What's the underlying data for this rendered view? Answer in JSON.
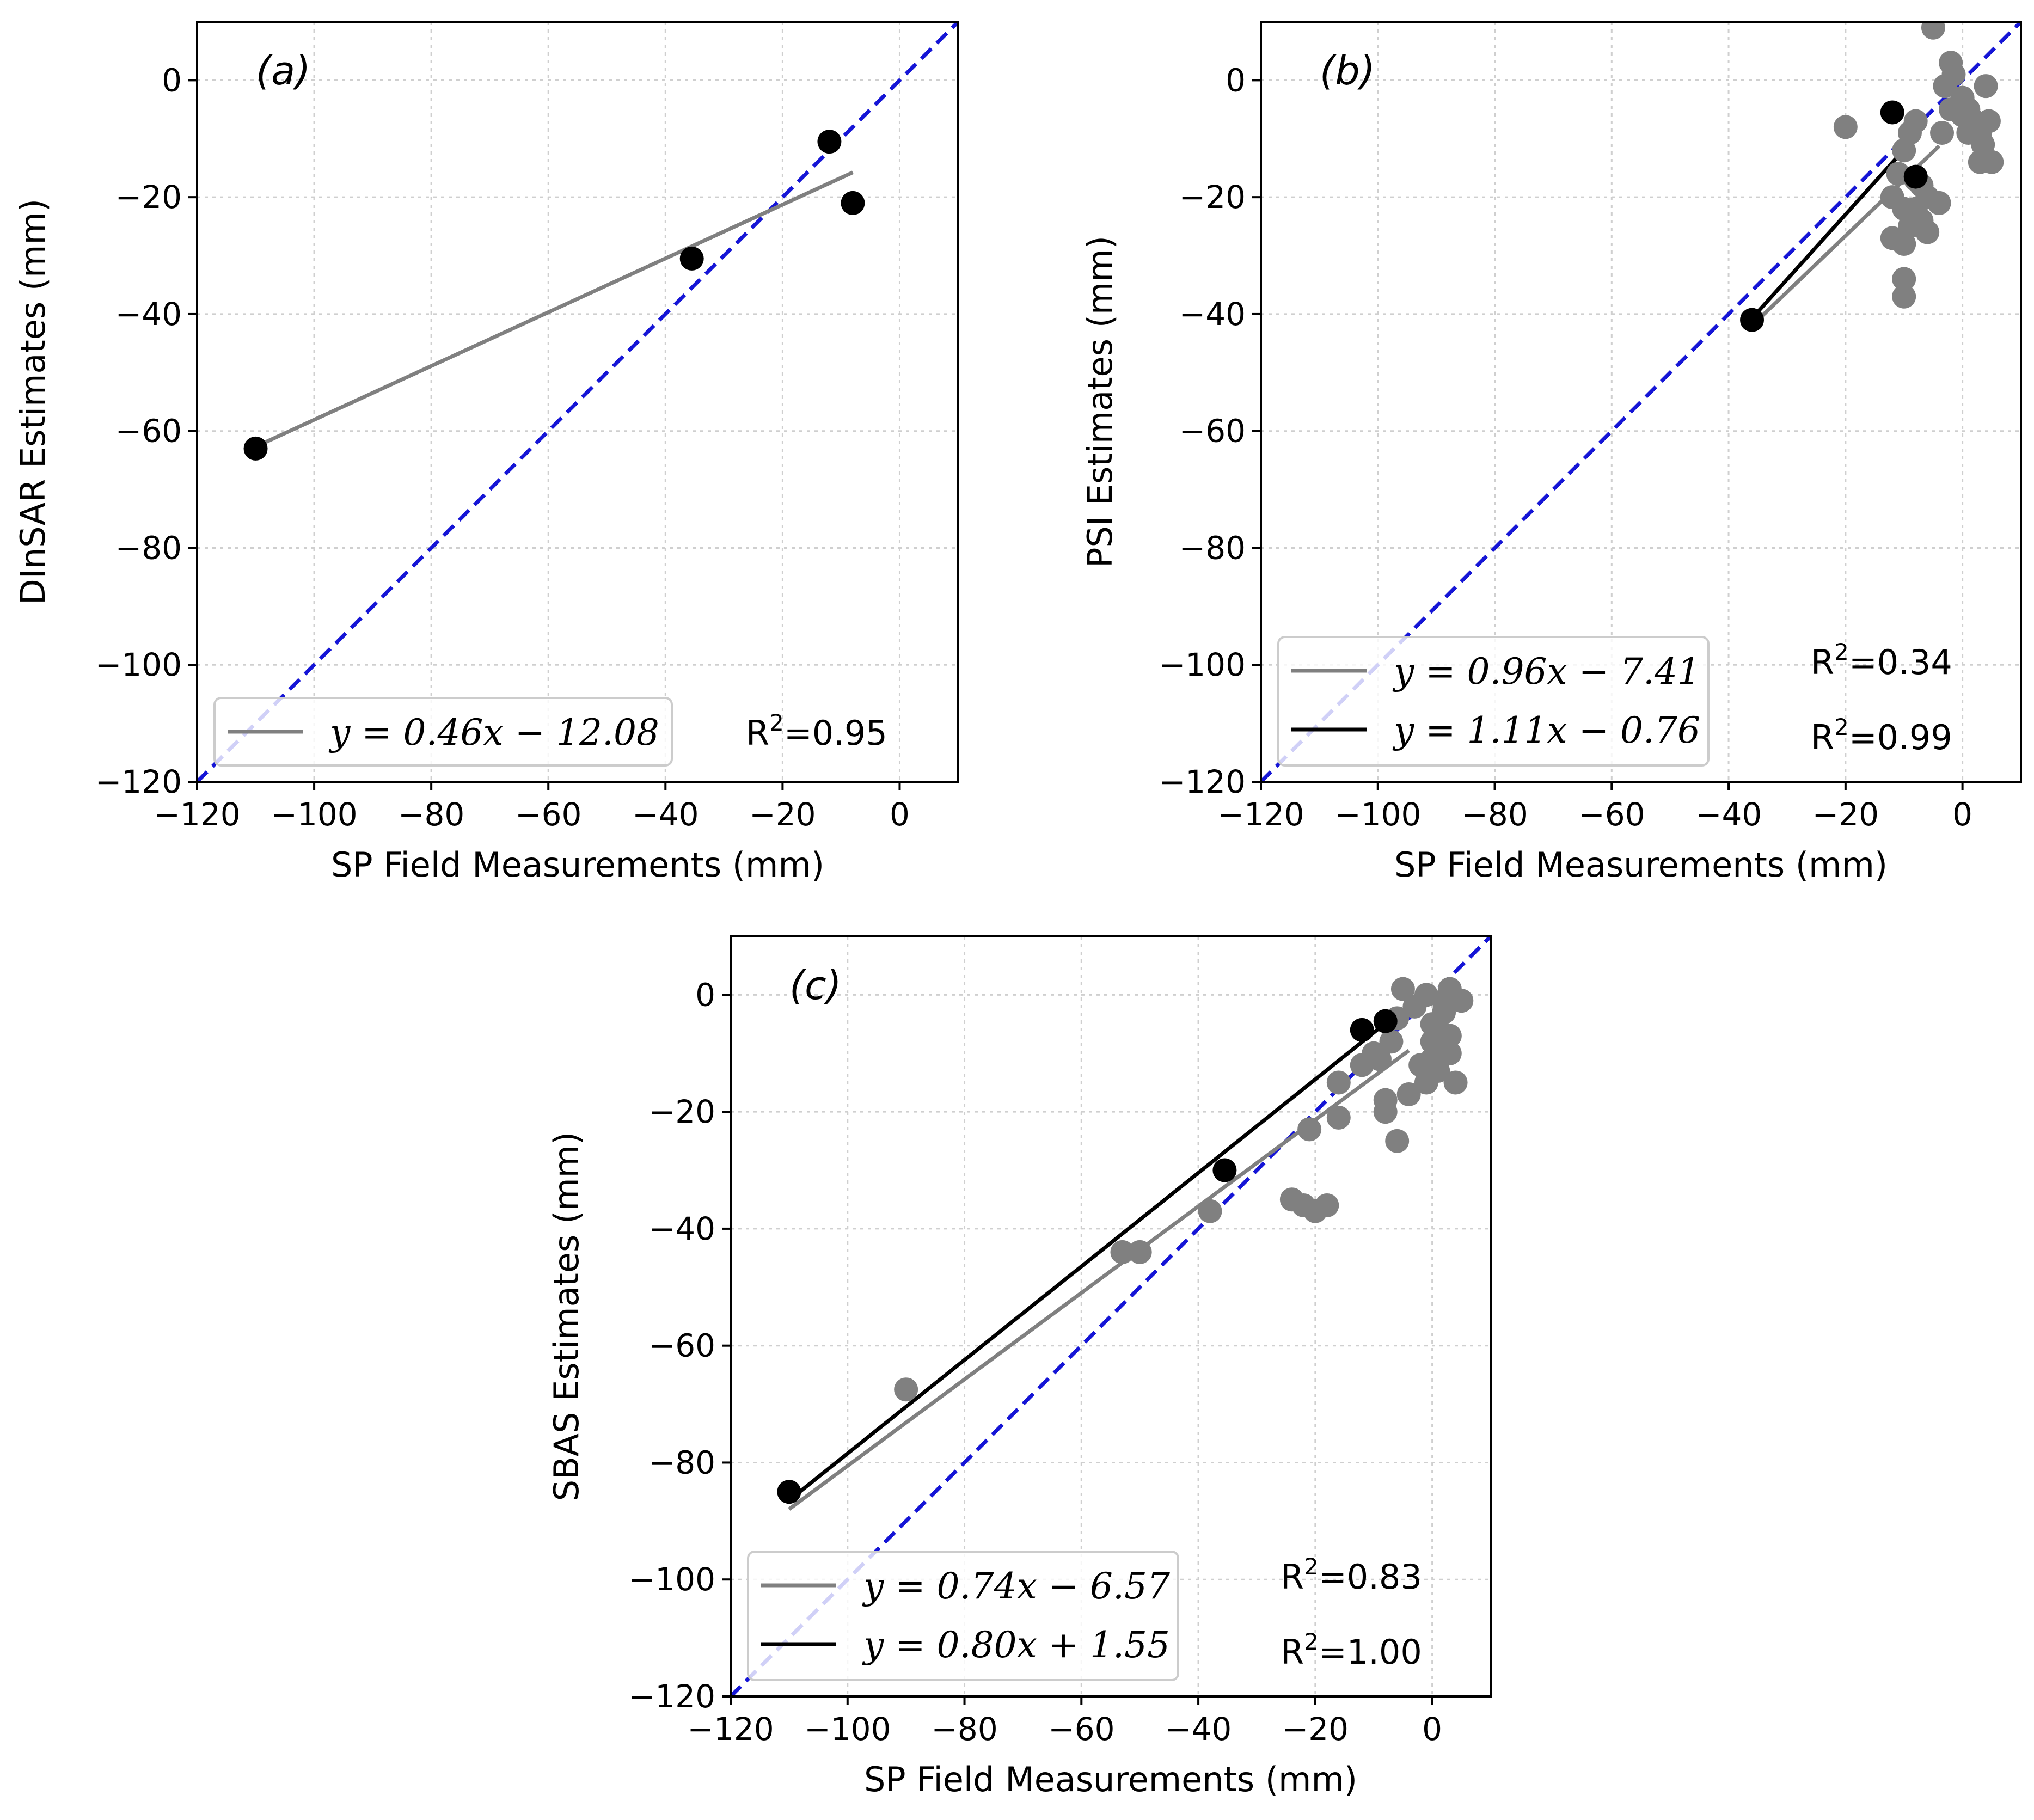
{
  "chart_data": [
    {
      "type": "scatter",
      "panel": "(a)",
      "xlabel": "SP Field Measurements (mm)",
      "ylabel": "DInSAR Estimates (mm)",
      "xlim": [
        -120,
        10
      ],
      "ylim": [
        -120,
        10
      ],
      "xticks": [
        -120,
        -100,
        -80,
        -60,
        -40,
        -20,
        0
      ],
      "yticks": [
        0,
        -20,
        -40,
        -60,
        -80,
        -100,
        -120
      ],
      "xtick_labels": [
        "−120",
        "−100",
        "−80",
        "−60",
        "−40",
        "−20",
        "0"
      ],
      "ytick_labels": [
        "0",
        "−20",
        "−40",
        "−60",
        "−80",
        "−100",
        "−120"
      ],
      "grid": true,
      "identity_line": {
        "color": "#1515d6",
        "style": "dashed"
      },
      "series": [
        {
          "name": "points",
          "color": "#000000",
          "points": [
            [
              -110,
              -63
            ],
            [
              -35.5,
              -30.5
            ],
            [
              -12,
              -10.5
            ],
            [
              -8,
              -21
            ]
          ]
        }
      ],
      "fits": [
        {
          "label": "$y = 0.46x - 12.08$",
          "display": "y = 0.46x − 12.08",
          "slope": 0.46,
          "intercept": -12.08,
          "x_range": [
            -110,
            -8
          ],
          "color": "#808080",
          "r2": "0.95"
        }
      ],
      "legend_location": "lower-left"
    },
    {
      "type": "scatter",
      "panel": "(b)",
      "xlabel": "SP Field Measurements (mm)",
      "ylabel": "PSI Estimates (mm)",
      "xlim": [
        -120,
        10
      ],
      "ylim": [
        -120,
        10
      ],
      "xticks": [
        -120,
        -100,
        -80,
        -60,
        -40,
        -20,
        0
      ],
      "yticks": [
        0,
        -20,
        -40,
        -60,
        -80,
        -100,
        -120
      ],
      "xtick_labels": [
        "−120",
        "−100",
        "−80",
        "−60",
        "−40",
        "−20",
        "0"
      ],
      "ytick_labels": [
        "0",
        "−20",
        "−40",
        "−60",
        "−80",
        "−100",
        "−120"
      ],
      "grid": true,
      "identity_line": {
        "color": "#1515d6",
        "style": "dashed"
      },
      "series": [
        {
          "name": "all points",
          "color": "#808080",
          "points": [
            [
              -20,
              -8
            ],
            [
              -5,
              9
            ],
            [
              -2,
              3
            ],
            [
              -1.5,
              1
            ],
            [
              -3,
              -1
            ],
            [
              0,
              -3
            ],
            [
              1,
              -5
            ],
            [
              2,
              -7
            ],
            [
              3,
              -9
            ],
            [
              4,
              -1
            ],
            [
              4.5,
              -7
            ],
            [
              3.5,
              -11
            ],
            [
              3,
              -14
            ],
            [
              5,
              -14
            ],
            [
              1,
              -9
            ],
            [
              0,
              -6
            ],
            [
              -2,
              -5
            ],
            [
              -3.5,
              -9
            ],
            [
              -8,
              -7
            ],
            [
              -9,
              -9
            ],
            [
              -10,
              -12
            ],
            [
              -11,
              -16
            ],
            [
              -12,
              -20
            ],
            [
              -10,
              -22
            ],
            [
              -9,
              -25
            ],
            [
              -10,
              -28
            ],
            [
              -12,
              -27
            ],
            [
              -8,
              -22
            ],
            [
              -7,
              -24
            ],
            [
              -6,
              -26
            ],
            [
              -4,
              -21
            ],
            [
              -6,
              -20
            ],
            [
              -7,
              -18
            ],
            [
              -10,
              -34
            ],
            [
              -10,
              -37
            ],
            [
              -8,
              -17
            ]
          ]
        },
        {
          "name": "SP points",
          "color": "#000000",
          "points": [
            [
              -36,
              -41
            ],
            [
              -12,
              -5.5
            ],
            [
              -8,
              -16.5
            ]
          ]
        }
      ],
      "fits": [
        {
          "label": "$y = 0.96x - 7.41$",
          "display": "y = 0.96x − 7.41",
          "slope": 0.96,
          "intercept": -7.41,
          "x_range": [
            -36,
            -4
          ],
          "color": "#808080",
          "r2": "0.34"
        },
        {
          "label": "$y = 1.11x - 0.76$",
          "display": "y = 1.11x − 0.76",
          "slope": 1.11,
          "intercept": -0.76,
          "x_range": [
            -36,
            -8
          ],
          "color": "#000000",
          "r2": "0.99"
        }
      ],
      "legend_location": "lower-left"
    },
    {
      "type": "scatter",
      "panel": "(c)",
      "xlabel": "SP Field Measurements (mm)",
      "ylabel": "SBAS Estimates (mm)",
      "xlim": [
        -120,
        10
      ],
      "ylim": [
        -120,
        10
      ],
      "xticks": [
        -120,
        -100,
        -80,
        -60,
        -40,
        -20,
        0
      ],
      "yticks": [
        0,
        -20,
        -40,
        -60,
        -80,
        -100,
        -120
      ],
      "xtick_labels": [
        "−120",
        "−100",
        "−80",
        "−60",
        "−40",
        "−20",
        "0"
      ],
      "ytick_labels": [
        "0",
        "−20",
        "−40",
        "−60",
        "−80",
        "−100",
        "−120"
      ],
      "grid": true,
      "identity_line": {
        "color": "#1515d6",
        "style": "dashed"
      },
      "series": [
        {
          "name": "all points",
          "color": "#808080",
          "points": [
            [
              -90,
              -67.5
            ],
            [
              -53,
              -44
            ],
            [
              -50,
              -44
            ],
            [
              -38,
              -37
            ],
            [
              -24,
              -35
            ],
            [
              -22,
              -36
            ],
            [
              -20,
              -37
            ],
            [
              -18,
              -36
            ],
            [
              -21,
              -23
            ],
            [
              -16,
              -21
            ],
            [
              -16,
              -15
            ],
            [
              -8,
              -18
            ],
            [
              -8,
              -20
            ],
            [
              -6,
              -25
            ],
            [
              -5,
              1
            ],
            [
              -4,
              -17
            ],
            [
              -3,
              -2
            ],
            [
              -2,
              -12
            ],
            [
              -1,
              -15
            ],
            [
              0,
              -5
            ],
            [
              0,
              -8
            ],
            [
              0,
              -11
            ],
            [
              1,
              -13
            ],
            [
              1,
              -6
            ],
            [
              2,
              -1
            ],
            [
              2,
              -3
            ],
            [
              3,
              -7
            ],
            [
              3,
              -10
            ],
            [
              3,
              1
            ],
            [
              4,
              -15
            ],
            [
              5,
              -1
            ],
            [
              -6,
              -4
            ],
            [
              -7,
              -8
            ],
            [
              -10,
              -10
            ],
            [
              -12,
              -12
            ],
            [
              -9,
              -11
            ],
            [
              -1,
              0
            ]
          ]
        },
        {
          "name": "SP points",
          "color": "#000000",
          "points": [
            [
              -110,
              -85
            ],
            [
              -35.5,
              -30
            ],
            [
              -12,
              -6
            ],
            [
              -8,
              -4.5
            ]
          ]
        }
      ],
      "fits": [
        {
          "label": "$y = 0.74x - 6.57$",
          "display": "y = 0.74x − 6.57",
          "slope": 0.74,
          "intercept": -6.57,
          "x_range": [
            -110,
            -4
          ],
          "color": "#808080",
          "r2": "0.83"
        },
        {
          "label": "$y = 0.80x + 1.55$",
          "display": "y = 0.80x + 1.55",
          "slope": 0.8,
          "intercept": 1.55,
          "x_range": [
            -110,
            -8
          ],
          "color": "#000000",
          "r2": "1.00"
        }
      ],
      "legend_location": "lower-left"
    }
  ]
}
